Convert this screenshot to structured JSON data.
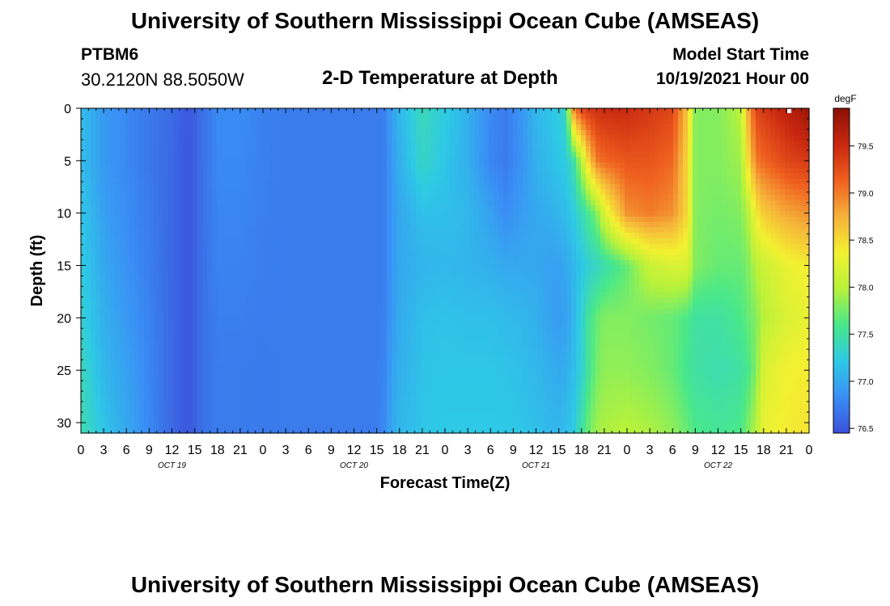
{
  "header": {
    "title": "University of Southern Mississippi Ocean Cube (AMSEAS)",
    "station": "PTBM6",
    "coords": "30.2120N  88.5050W",
    "subtitle": "2-D Temperature at Depth",
    "model_label": "Model Start Time",
    "model_time": "10/19/2021 Hour 00"
  },
  "footer_title": "University of Southern Mississippi Ocean Cube (AMSEAS)",
  "chart_data": {
    "type": "heatmap",
    "title": "2-D Temperature at Depth",
    "xlabel": "Forecast Time(Z)",
    "ylabel": "Depth (ft)",
    "x_range_hours": [
      0,
      96
    ],
    "y_range_ft": [
      0,
      31
    ],
    "y_inverted": true,
    "x_ticks": [
      "0",
      "3",
      "6",
      "9",
      "12",
      "15",
      "18",
      "21",
      "0",
      "3",
      "6",
      "9",
      "12",
      "15",
      "18",
      "21",
      "0",
      "3",
      "6",
      "9",
      "12",
      "15",
      "18",
      "21",
      "0",
      "3",
      "6",
      "9",
      "12",
      "15",
      "18",
      "21",
      "0"
    ],
    "date_labels": [
      {
        "label": "OCT 19",
        "hour": 12
      },
      {
        "label": "OCT 20",
        "hour": 36
      },
      {
        "label": "OCT 21",
        "hour": 60
      },
      {
        "label": "OCT 22",
        "hour": 84
      }
    ],
    "y_ticks": [
      0,
      5,
      10,
      15,
      20,
      25,
      30
    ],
    "colorbar": {
      "unit": "degF",
      "min": 76.45,
      "max": 79.9,
      "ticks": [
        "79.5",
        "79.0",
        "78.5",
        "78.0",
        "77.5",
        "77.0",
        "76.5"
      ],
      "tick_values": [
        79.5,
        79.0,
        78.5,
        78.0,
        77.5,
        77.0,
        76.5
      ]
    },
    "colormap": [
      "#3b4fd8",
      "#3a8ff5",
      "#2ec9e6",
      "#49e88a",
      "#b8f23a",
      "#f3f131",
      "#f6b23a",
      "#ef5f1f",
      "#c8270f",
      "#8a0f04"
    ],
    "depth_levels_ft": [
      0,
      5,
      10,
      15,
      20,
      25,
      31
    ],
    "temperature_columns": [
      {
        "hour": 0,
        "temps_degF": [
          77.15,
          77.15,
          77.2,
          77.25,
          77.3,
          77.4,
          77.45
        ]
      },
      {
        "hour": 3,
        "temps_degF": [
          76.9,
          76.9,
          76.95,
          77.0,
          77.05,
          77.1,
          77.2
        ]
      },
      {
        "hour": 6,
        "temps_degF": [
          76.8,
          76.8,
          76.82,
          76.85,
          76.9,
          76.95,
          77.0
        ]
      },
      {
        "hour": 9,
        "temps_degF": [
          76.7,
          76.7,
          76.72,
          76.74,
          76.76,
          76.78,
          76.8
        ]
      },
      {
        "hour": 12,
        "temps_degF": [
          76.62,
          76.6,
          76.6,
          76.6,
          76.6,
          76.6,
          76.6
        ]
      },
      {
        "hour": 14,
        "temps_degF": [
          76.5,
          76.5,
          76.5,
          76.5,
          76.5,
          76.5,
          76.5
        ]
      },
      {
        "hour": 15,
        "temps_degF": [
          76.55,
          76.55,
          76.55,
          76.55,
          76.55,
          76.55,
          76.55
        ]
      },
      {
        "hour": 16,
        "temps_degF": [
          76.65,
          76.65,
          76.65,
          76.65,
          76.65,
          76.65,
          76.65
        ]
      },
      {
        "hour": 18,
        "temps_degF": [
          76.8,
          76.8,
          76.78,
          76.76,
          76.74,
          76.72,
          76.72
        ]
      },
      {
        "hour": 21,
        "temps_degF": [
          76.82,
          76.8,
          76.78,
          76.76,
          76.74,
          76.72,
          76.72
        ]
      },
      {
        "hour": 24,
        "temps_degF": [
          76.75,
          76.75,
          76.74,
          76.73,
          76.72,
          76.71,
          76.71
        ]
      },
      {
        "hour": 27,
        "temps_degF": [
          76.72,
          76.72,
          76.72,
          76.72,
          76.72,
          76.72,
          76.72
        ]
      },
      {
        "hour": 30,
        "temps_degF": [
          76.72,
          76.72,
          76.72,
          76.72,
          76.72,
          76.72,
          76.72
        ]
      },
      {
        "hour": 33,
        "temps_degF": [
          76.72,
          76.72,
          76.72,
          76.72,
          76.72,
          76.72,
          76.72
        ]
      },
      {
        "hour": 36,
        "temps_degF": [
          76.72,
          76.72,
          76.72,
          76.72,
          76.72,
          76.72,
          76.72
        ]
      },
      {
        "hour": 39,
        "temps_degF": [
          76.72,
          76.72,
          76.72,
          76.72,
          76.72,
          76.72,
          76.72
        ]
      },
      {
        "hour": 40,
        "temps_degF": [
          76.75,
          76.75,
          76.75,
          76.75,
          76.76,
          76.78,
          76.8
        ]
      },
      {
        "hour": 41,
        "temps_degF": [
          76.95,
          76.9,
          76.88,
          76.88,
          76.9,
          76.95,
          77.0
        ]
      },
      {
        "hour": 42,
        "temps_degF": [
          77.1,
          77.05,
          77.0,
          77.0,
          77.02,
          77.05,
          77.1
        ]
      },
      {
        "hour": 44,
        "temps_degF": [
          77.3,
          77.25,
          77.1,
          77.05,
          77.1,
          77.12,
          77.15
        ]
      },
      {
        "hour": 45,
        "temps_degF": [
          77.4,
          77.35,
          77.15,
          77.08,
          77.15,
          77.18,
          77.2
        ]
      },
      {
        "hour": 48,
        "temps_degF": [
          77.25,
          77.2,
          77.15,
          77.1,
          77.18,
          77.2,
          77.22
        ]
      },
      {
        "hour": 51,
        "temps_degF": [
          77.05,
          77.05,
          77.1,
          77.08,
          77.15,
          77.2,
          77.22
        ]
      },
      {
        "hour": 54,
        "temps_degF": [
          76.8,
          76.78,
          76.95,
          77.05,
          77.15,
          77.2,
          77.22
        ]
      },
      {
        "hour": 56,
        "temps_degF": [
          76.72,
          76.72,
          76.82,
          77.0,
          77.12,
          77.18,
          77.22
        ]
      },
      {
        "hour": 58,
        "temps_degF": [
          76.88,
          76.85,
          76.92,
          77.0,
          77.1,
          77.15,
          77.2
        ]
      },
      {
        "hour": 60,
        "temps_degF": [
          77.1,
          77.05,
          77.0,
          77.0,
          77.05,
          77.1,
          77.15
        ]
      },
      {
        "hour": 62,
        "temps_degF": [
          77.2,
          77.15,
          77.05,
          76.95,
          76.95,
          77.05,
          77.1
        ]
      },
      {
        "hour": 63,
        "temps_degF": [
          77.25,
          77.2,
          77.1,
          76.95,
          76.92,
          77.0,
          77.1
        ]
      },
      {
        "hour": 64,
        "temps_degF": [
          77.4,
          77.25,
          77.15,
          77.0,
          76.95,
          77.05,
          77.15
        ]
      },
      {
        "hour": 65,
        "temps_degF": [
          79.0,
          77.5,
          77.25,
          77.1,
          77.1,
          77.15,
          77.25
        ]
      },
      {
        "hour": 66,
        "temps_degF": [
          79.3,
          78.0,
          77.4,
          77.2,
          77.3,
          77.3,
          77.5
        ]
      },
      {
        "hour": 67,
        "temps_degF": [
          79.4,
          78.6,
          77.6,
          77.3,
          77.55,
          77.55,
          77.75
        ]
      },
      {
        "hour": 68,
        "temps_degF": [
          79.45,
          79.0,
          77.8,
          77.35,
          77.7,
          77.75,
          77.9
        ]
      },
      {
        "hour": 69,
        "temps_degF": [
          79.5,
          79.1,
          78.2,
          77.45,
          77.8,
          77.85,
          77.95
        ]
      },
      {
        "hour": 72,
        "temps_degF": [
          79.5,
          79.2,
          78.9,
          77.7,
          77.8,
          77.85,
          78.0
        ]
      },
      {
        "hour": 75,
        "temps_degF": [
          79.4,
          79.2,
          79.0,
          78.1,
          77.75,
          77.8,
          77.95
        ]
      },
      {
        "hour": 78,
        "temps_degF": [
          79.3,
          79.1,
          78.9,
          78.2,
          77.7,
          77.7,
          77.85
        ]
      },
      {
        "hour": 80,
        "temps_degF": [
          78.6,
          78.5,
          78.5,
          78.2,
          77.6,
          77.55,
          77.7
        ]
      },
      {
        "hour": 81,
        "temps_degF": [
          77.8,
          77.8,
          77.8,
          77.8,
          77.5,
          77.5,
          77.6
        ]
      },
      {
        "hour": 84,
        "temps_degF": [
          77.8,
          77.8,
          77.75,
          77.7,
          77.5,
          77.45,
          77.55
        ]
      },
      {
        "hour": 87,
        "temps_degF": [
          78.0,
          77.9,
          77.8,
          77.7,
          77.6,
          77.5,
          77.6
        ]
      },
      {
        "hour": 88,
        "temps_degF": [
          78.8,
          78.5,
          78.0,
          77.8,
          77.7,
          77.6,
          77.8
        ]
      },
      {
        "hour": 89,
        "temps_degF": [
          79.3,
          79.0,
          78.4,
          78.0,
          77.8,
          77.8,
          78.0
        ]
      },
      {
        "hour": 90,
        "temps_degF": [
          79.4,
          79.1,
          78.6,
          78.1,
          78.0,
          78.2,
          78.3
        ]
      },
      {
        "hour": 93,
        "temps_degF": [
          79.6,
          79.3,
          78.8,
          78.3,
          78.2,
          78.35,
          78.4
        ]
      },
      {
        "hour": 96,
        "temps_degF": [
          79.8,
          79.4,
          78.9,
          78.4,
          78.3,
          78.4,
          78.45
        ]
      }
    ]
  }
}
